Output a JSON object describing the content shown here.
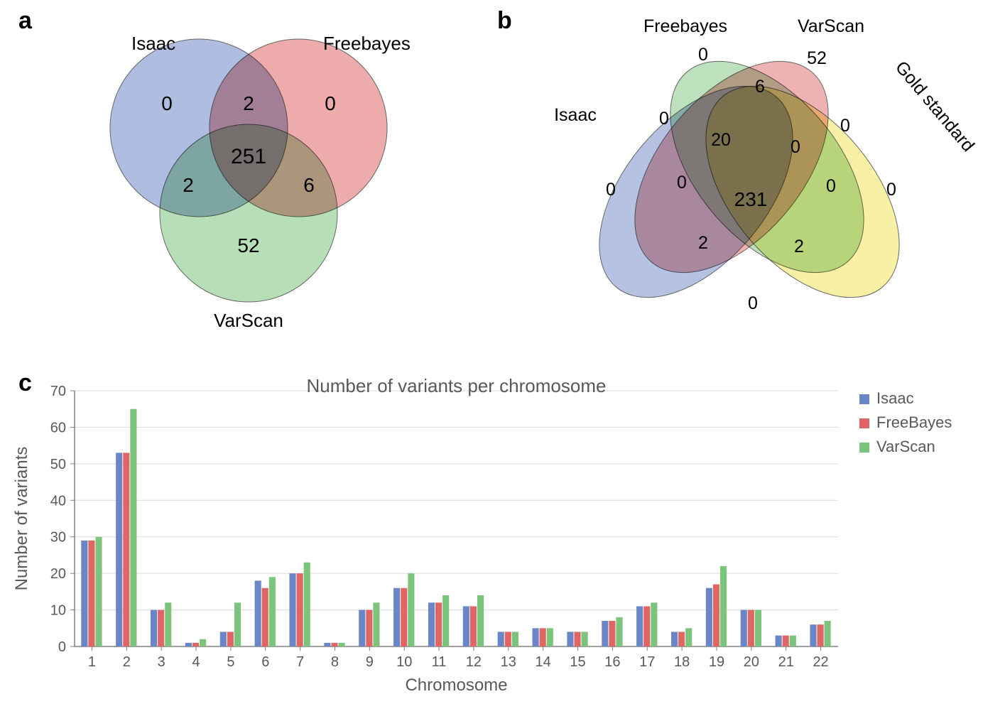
{
  "panel_labels": {
    "a": "a",
    "b": "b",
    "c": "c"
  },
  "venn3": {
    "labels": {
      "A": "Isaac",
      "B": "Freebayes",
      "C": "VarScan"
    },
    "colors": {
      "A": "#6b86c6",
      "B": "#e06666",
      "C": "#7cc47c"
    },
    "opacity": 0.55,
    "stroke": "#666666",
    "values": {
      "A_only": 0,
      "B_only": 0,
      "C_only": 52,
      "AB": 2,
      "AC": 2,
      "BC": 6,
      "ABC": 251
    }
  },
  "venn4": {
    "labels": {
      "A": "Isaac",
      "B": "Freebayes",
      "C": "VarScan",
      "D": "Gold standard"
    },
    "colors": {
      "A": "#6b86c6",
      "B": "#e06666",
      "C": "#7cc47c",
      "D": "#f2e34c"
    },
    "opacity": 0.5,
    "stroke": "#666666",
    "values": {
      "A": 0,
      "B": 0,
      "C": 52,
      "D": 0,
      "AB": 0,
      "AC": 0,
      "AD": 0,
      "BC": 6,
      "BD": 0,
      "CD": 0,
      "ABC": 20,
      "ABD": 2,
      "ACD": 2,
      "BCD": 0,
      "ABCD": 231
    }
  },
  "bar_chart": {
    "title": "Number of variants per chromosome",
    "title_fontsize": 26,
    "xlabel": "Chromosome",
    "ylabel": "Number of variants",
    "label_fontsize": 24,
    "tick_fontsize": 20,
    "series": [
      {
        "name": "Isaac",
        "color": "#6b86c6"
      },
      {
        "name": "FreeBayes",
        "color": "#e06666"
      },
      {
        "name": "VarScan",
        "color": "#7cc47c"
      }
    ],
    "categories": [
      "1",
      "2",
      "3",
      "4",
      "5",
      "6",
      "7",
      "8",
      "9",
      "10",
      "11",
      "12",
      "13",
      "14",
      "15",
      "16",
      "17",
      "18",
      "19",
      "20",
      "21",
      "22"
    ],
    "data": {
      "Isaac": [
        29,
        53,
        10,
        1,
        4,
        18,
        20,
        1,
        10,
        16,
        12,
        11,
        4,
        5,
        4,
        7,
        11,
        4,
        16,
        10,
        3,
        6
      ],
      "FreeBayes": [
        29,
        53,
        10,
        1,
        4,
        16,
        20,
        1,
        10,
        16,
        12,
        11,
        4,
        5,
        4,
        7,
        11,
        4,
        17,
        10,
        3,
        6
      ],
      "VarScan": [
        30,
        65,
        12,
        2,
        12,
        19,
        23,
        1,
        12,
        20,
        14,
        14,
        4,
        5,
        4,
        8,
        12,
        5,
        22,
        10,
        3,
        7
      ]
    },
    "ylim": [
      0,
      70
    ],
    "ytick_step": 10,
    "grid_color": "#d9d9d9",
    "axis_color": "#808080",
    "background_color": "#ffffff",
    "bar_group_width": 0.62,
    "bar_gap": 0.02,
    "legend": {
      "box_stroke": "none",
      "marker_size": 14,
      "fontsize": 22
    }
  }
}
